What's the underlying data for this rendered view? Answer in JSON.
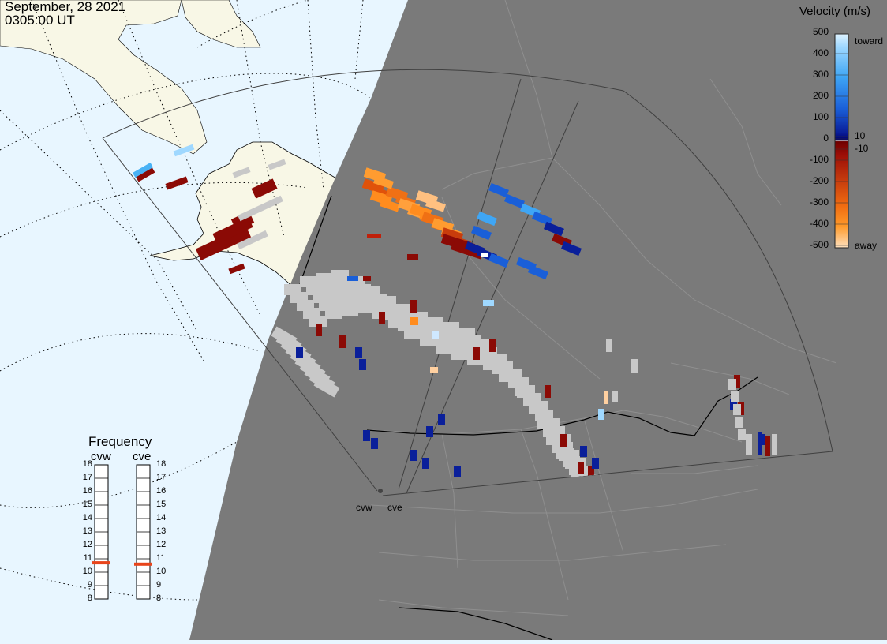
{
  "header": {
    "date": "September, 28 2021",
    "time": "0305:00 UT"
  },
  "velocity_scale": {
    "title": "Velocity (m/s)",
    "tick_labels": [
      "500",
      "400",
      "300",
      "200",
      "100",
      "10",
      "0",
      "-10",
      "-100",
      "-200",
      "-300",
      "-400",
      "-500"
    ],
    "toward_label": "toward",
    "away_label": "away"
  },
  "frequency_panel": {
    "title": "Frequency",
    "radars": [
      {
        "name": "cvw",
        "frequency_mhz": 10.7
      },
      {
        "name": "cve",
        "frequency_mhz": 10.6
      }
    ],
    "scale_labels": [
      "18",
      "17",
      "16",
      "15",
      "14",
      "13",
      "12",
      "11",
      "10",
      "9",
      "8"
    ]
  },
  "site_labels": [
    "cvw",
    "cve"
  ],
  "colors": {
    "ocean": "#e8f6ff",
    "land_day": "#f8f7e6",
    "night_shade": "#7a7a7a",
    "ground_scatter": "#c8c8c8",
    "freq_marker": "#e8441b",
    "borders": "#8f8f8f"
  }
}
